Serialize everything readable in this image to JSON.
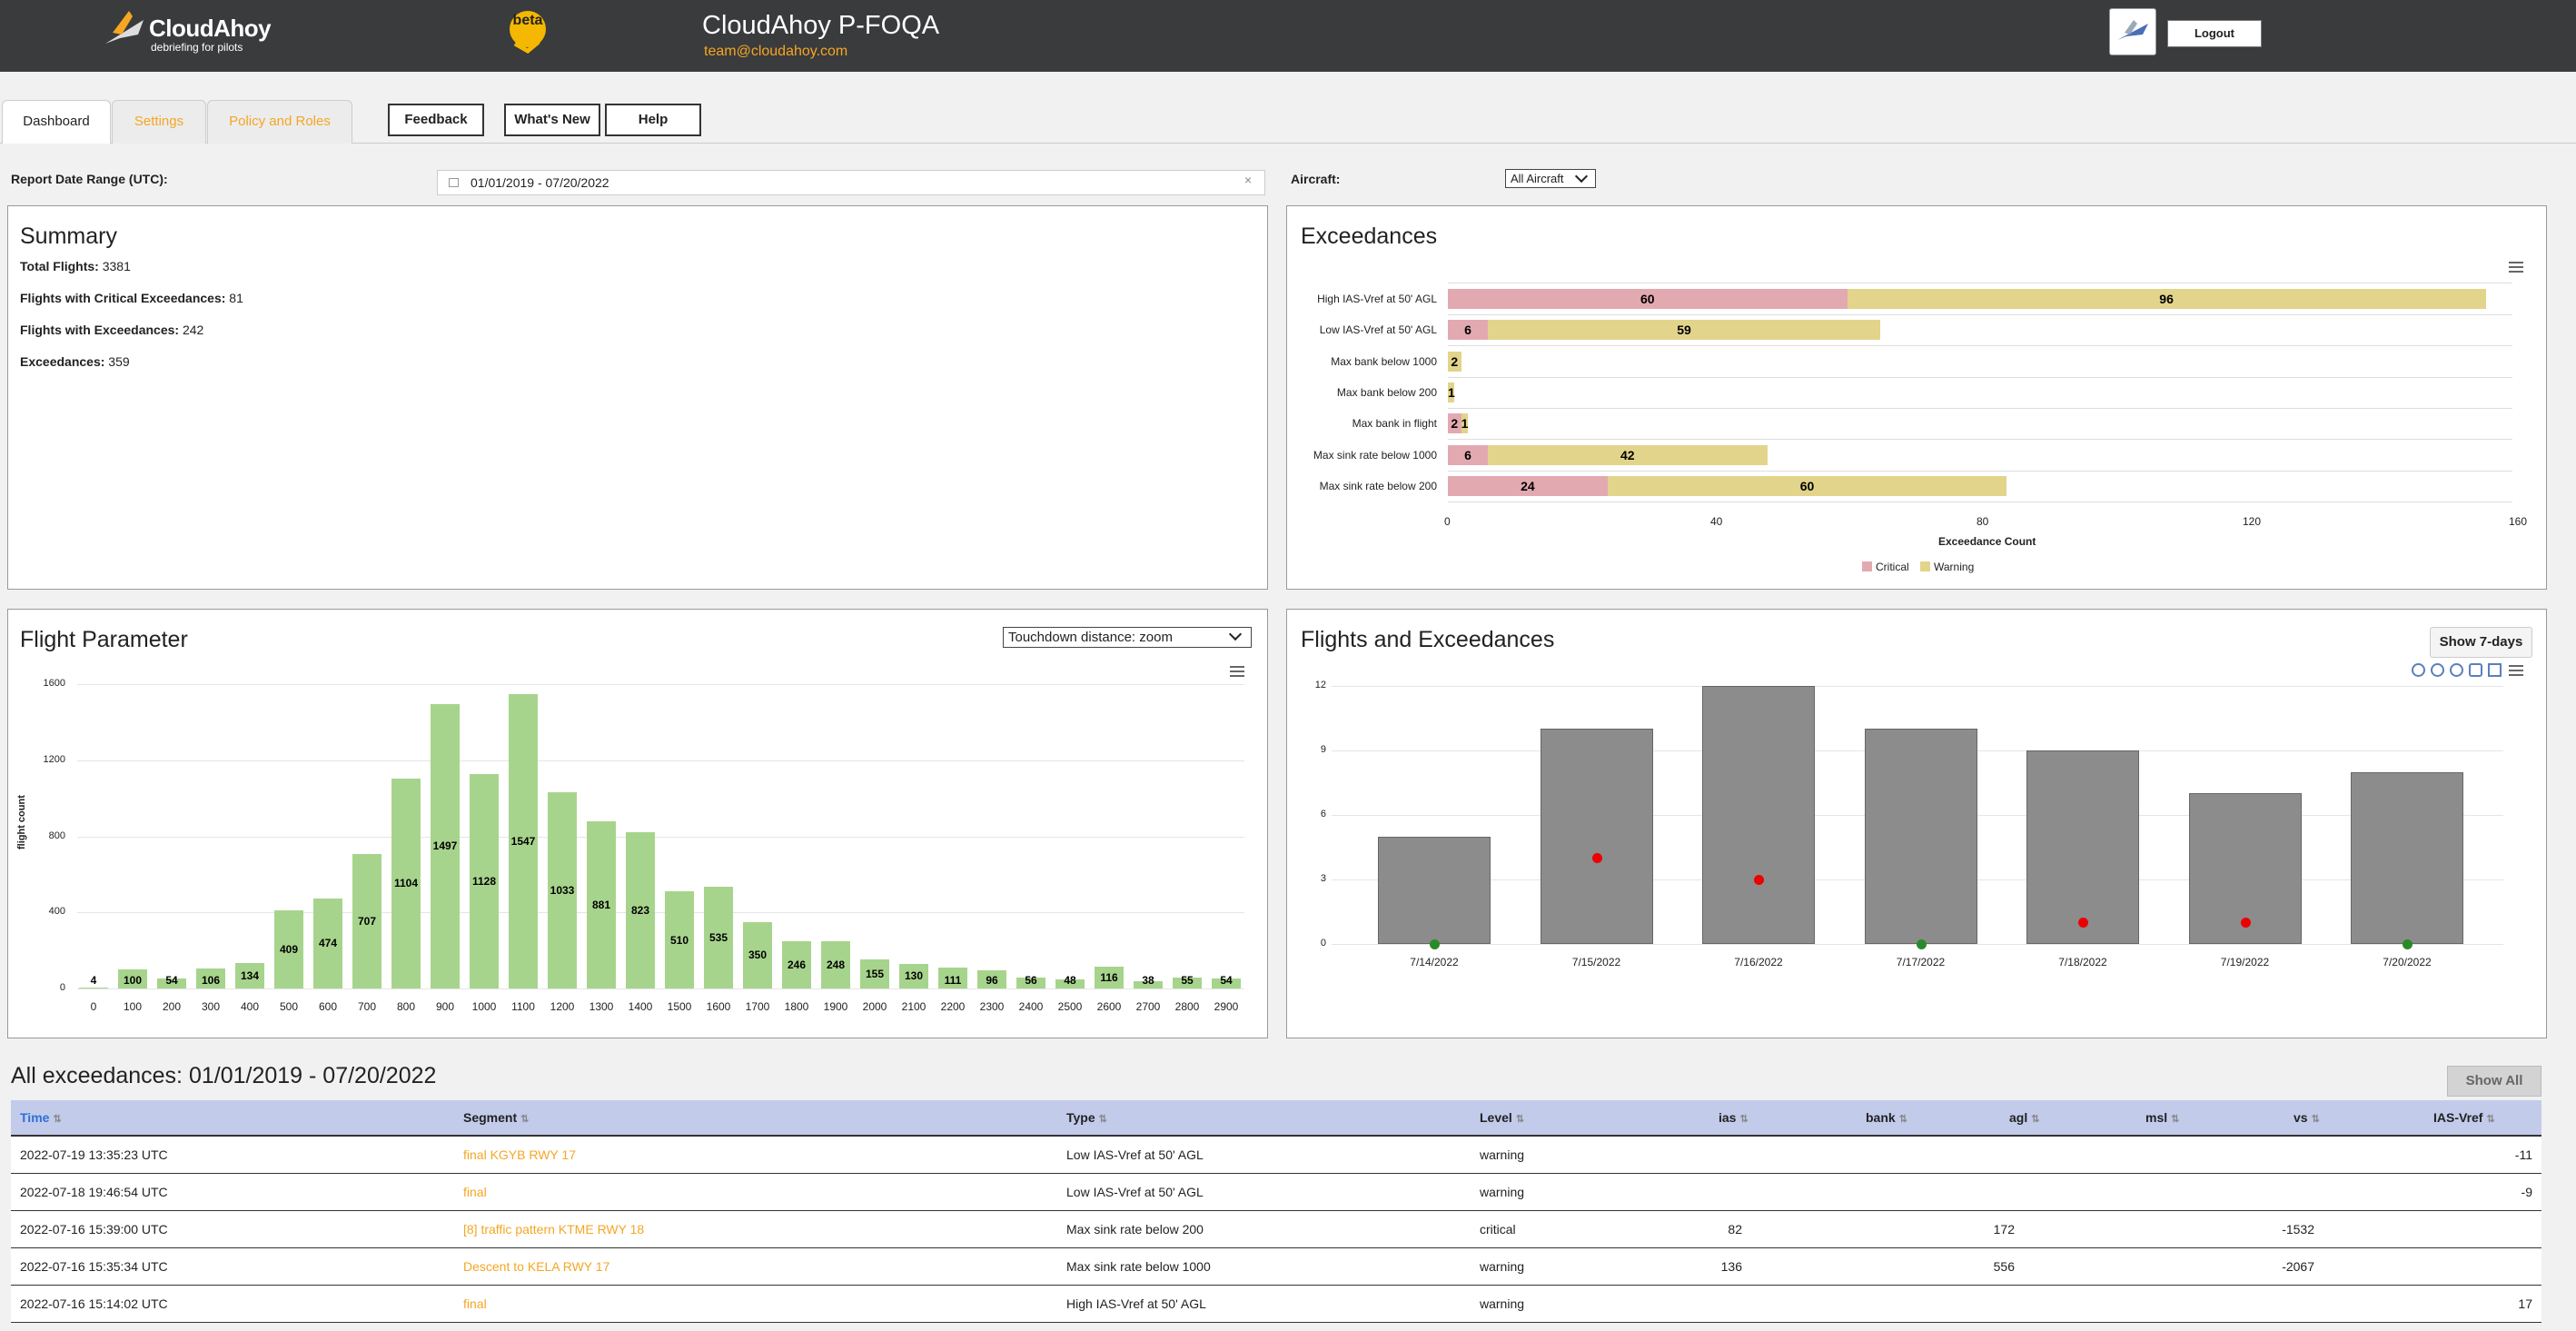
{
  "header": {
    "logo_name": "CloudAhoy",
    "logo_tagline": "debriefing for pilots",
    "beta_label": "beta",
    "app_title": "CloudAhoy P-FOQA",
    "email": "team@cloudahoy.com",
    "logout_label": "Logout"
  },
  "tabs": [
    {
      "label": "Dashboard",
      "active": true
    },
    {
      "label": "Settings",
      "active": false
    },
    {
      "label": "Policy and Roles",
      "active": false
    }
  ],
  "buttons": {
    "feedback": "Feedback",
    "whats_new": "What's New",
    "help": "Help"
  },
  "filters": {
    "date_label": "Report Date Range (UTC):",
    "date_value": "01/01/2019 - 07/20/2022",
    "aircraft_label": "Aircraft:",
    "aircraft_value": "All Aircraft"
  },
  "summary": {
    "title": "Summary",
    "total_flights_label": "Total Flights:",
    "total_flights": "3381",
    "critical_label": "Flights with Critical Exceedances:",
    "critical": "81",
    "with_exc_label": "Flights with Exceedances:",
    "with_exc": "242",
    "exceedances_label": "Exceedances:",
    "exceedances": "359"
  },
  "chart_data": [
    {
      "type": "bar",
      "title": "Exceedances",
      "orientation": "horizontal",
      "stacked": true,
      "categories": [
        "High IAS-Vref at 50' AGL",
        "Low IAS-Vref at 50' AGL",
        "Max bank below 1000",
        "Max bank below 200",
        "Max bank in flight",
        "Max sink rate below 1000",
        "Max sink rate below 200"
      ],
      "series": [
        {
          "name": "Critical",
          "color": "#e3a9b1",
          "values": [
            60,
            6,
            0,
            0,
            2,
            6,
            24
          ]
        },
        {
          "name": "Warning",
          "color": "#e2d48b",
          "values": [
            96,
            59,
            2,
            1,
            1,
            42,
            60
          ]
        }
      ],
      "xlabel": "Exceedance Count",
      "xlim": [
        0,
        160
      ],
      "xticks": [
        "0",
        "40",
        "80",
        "120",
        "160"
      ],
      "legend": "bottom-center"
    },
    {
      "type": "bar",
      "title": "Flight Parameter",
      "selector": "Touchdown distance: zoom",
      "ylabel": "flight count",
      "ylim": [
        0,
        1600
      ],
      "yticks": [
        "0",
        "400",
        "800",
        "1200",
        "1600"
      ],
      "categories": [
        "0",
        "100",
        "200",
        "300",
        "400",
        "500",
        "600",
        "700",
        "800",
        "900",
        "1000",
        "1100",
        "1200",
        "1300",
        "1400",
        "1500",
        "1600",
        "1700",
        "1800",
        "1900",
        "2000",
        "2100",
        "2200",
        "2300",
        "2400",
        "2500",
        "2600",
        "2700",
        "2800",
        "2900"
      ],
      "values": [
        4,
        100,
        54,
        106,
        134,
        409,
        474,
        707,
        1104,
        1497,
        1128,
        1547,
        1033,
        881,
        823,
        510,
        535,
        350,
        246,
        248,
        155,
        130,
        111,
        96,
        56,
        48,
        116,
        38,
        55,
        54
      ],
      "color": "#a7d48c"
    },
    {
      "type": "bar",
      "title": "Flights and Exceedances",
      "button": "Show 7-days",
      "ylim": [
        0,
        12
      ],
      "yticks": [
        "0",
        "3",
        "6",
        "9",
        "12"
      ],
      "categories": [
        "7/14/2022",
        "7/15/2022",
        "7/16/2022",
        "7/17/2022",
        "7/18/2022",
        "7/19/2022",
        "7/20/2022"
      ],
      "flights": [
        5,
        10,
        12,
        10,
        9,
        7,
        8
      ],
      "exceedances": [
        0,
        4,
        3,
        0,
        1,
        1,
        0
      ],
      "colors": {
        "bars": "#8c8c8c",
        "exceedance": "#ee0000",
        "none": "#2a8a2a"
      }
    }
  ],
  "table": {
    "title": "All exceedances: 01/01/2019 - 07/20/2022",
    "show_all": "Show All",
    "columns": [
      "Time",
      "Segment",
      "Type",
      "Level",
      "ias",
      "bank",
      "agl",
      "msl",
      "vs",
      "IAS-Vref"
    ],
    "rows": [
      {
        "time": "2022-07-19 13:35:23 UTC",
        "segment": "final KGYB RWY 17",
        "type": "Low IAS-Vref at 50' AGL",
        "level": "warning",
        "ias": "",
        "bank": "",
        "agl": "",
        "msl": "",
        "vs": "",
        "iasvref": "-11"
      },
      {
        "time": "2022-07-18 19:46:54 UTC",
        "segment": "final",
        "type": "Low IAS-Vref at 50' AGL",
        "level": "warning",
        "ias": "",
        "bank": "",
        "agl": "",
        "msl": "",
        "vs": "",
        "iasvref": "-9"
      },
      {
        "time": "2022-07-16 15:39:00 UTC",
        "segment": "[8] traffic pattern KTME RWY 18",
        "type": "Max sink rate below 200",
        "level": "critical",
        "ias": "82",
        "bank": "",
        "agl": "172",
        "msl": "",
        "vs": "-1532",
        "iasvref": ""
      },
      {
        "time": "2022-07-16 15:35:34 UTC",
        "segment": "Descent to KELA RWY 17",
        "type": "Max sink rate below 1000",
        "level": "warning",
        "ias": "136",
        "bank": "",
        "agl": "556",
        "msl": "",
        "vs": "-2067",
        "iasvref": ""
      },
      {
        "time": "2022-07-16 15:14:02 UTC",
        "segment": "final",
        "type": "High IAS-Vref at 50' AGL",
        "level": "warning",
        "ias": "",
        "bank": "",
        "agl": "",
        "msl": "",
        "vs": "",
        "iasvref": "17"
      }
    ]
  }
}
